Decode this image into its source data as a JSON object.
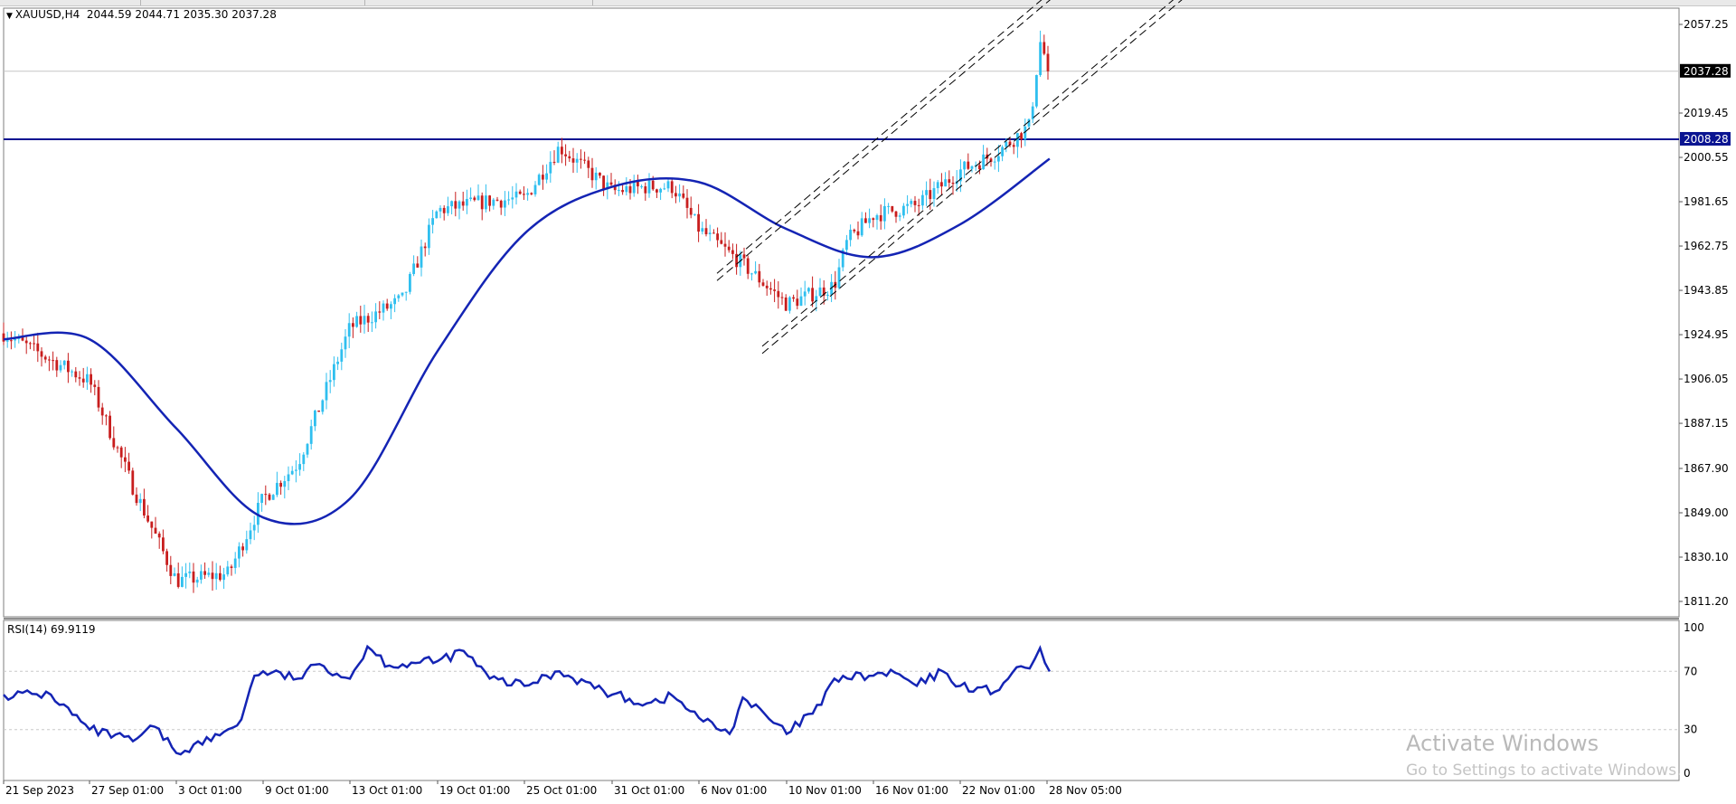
{
  "chart_header": {
    "symbol": "XAUUSD,H4",
    "ohlc": "2044.59 2044.71 2035.30 2037.28"
  },
  "price_axis_ticks": [
    "2057.25",
    "2019.45",
    "2000.55",
    "1981.65",
    "1962.75",
    "1943.85",
    "1924.95",
    "1906.05",
    "1887.15",
    "1867.90",
    "1849.00",
    "1830.10",
    "1811.20"
  ],
  "price_markers": {
    "current": "2037.28",
    "hline": "2008.28"
  },
  "time_axis_labels": [
    "21 Sep 2023",
    "27 Sep 01:00",
    "3 Oct 01:00",
    "9 Oct 01:00",
    "13 Oct 01:00",
    "19 Oct 01:00",
    "25 Oct 01:00",
    "31 Oct 01:00",
    "6 Nov 01:00",
    "10 Nov 01:00",
    "16 Nov 01:00",
    "22 Nov 01:00",
    "28 Nov 05:00"
  ],
  "rsi_header": "RSI(14) 69.9119",
  "rsi_axis_ticks": [
    "100",
    "70",
    "30",
    "0"
  ],
  "watermark": {
    "title": "Activate Windows",
    "subtitle": "Go to Settings to activate Windows."
  },
  "colors": {
    "bull": "#2fbfef",
    "bear": "#c81e1e",
    "ma": "#1424b4",
    "rsi": "#1424b4",
    "hline": "#0a1491",
    "channel": "#000000"
  },
  "chart_data": [
    {
      "type": "candlestick",
      "title": "XAUUSD,H4",
      "ylim": [
        1811.2,
        2057.25
      ],
      "overlays": [
        "moving-average",
        "horizontal-line 2008.28",
        "parallel channel (dashed)"
      ],
      "anchors": [
        {
          "x": "21 Sep 2023",
          "close": 1925.5
        },
        {
          "x": "27 Sep 01:00",
          "close": 1905
        },
        {
          "x": "29 Sep",
          "close": 1860
        },
        {
          "x": "3 Oct 01:00",
          "close": 1820
        },
        {
          "x": "6 Oct",
          "close": 1823
        },
        {
          "x": "9 Oct 01:00",
          "close": 1855
        },
        {
          "x": "11 Oct",
          "close": 1870
        },
        {
          "x": "13 Oct 01:00",
          "close": 1928
        },
        {
          "x": "17 Oct",
          "close": 1940
        },
        {
          "x": "19 Oct 01:00",
          "close": 1978
        },
        {
          "x": "23 Oct",
          "close": 1982
        },
        {
          "x": "25 Oct 01:00",
          "close": 1983
        },
        {
          "x": "27 Oct",
          "close": 2005
        },
        {
          "x": "31 Oct 01:00",
          "close": 1986
        },
        {
          "x": "2 Nov",
          "close": 1988
        },
        {
          "x": "4 Nov",
          "close": 1988
        },
        {
          "x": "6 Nov 01:00",
          "close": 1970
        },
        {
          "x": "8 Nov",
          "close": 1955
        },
        {
          "x": "10 Nov 01:00",
          "close": 1938
        },
        {
          "x": "13 Nov",
          "close": 1946
        },
        {
          "x": "14 Nov",
          "close": 1965
        },
        {
          "x": "16 Nov 01:00",
          "close": 1976
        },
        {
          "x": "19 Nov",
          "close": 1980
        },
        {
          "x": "22 Nov 01:00",
          "close": 1995
        },
        {
          "x": "24 Nov",
          "close": 2002
        },
        {
          "x": "27 Nov",
          "close": 2014
        },
        {
          "x": "28 Nov",
          "close": 2050
        },
        {
          "x": "28 Nov 05:00",
          "close": 2037.28
        }
      ],
      "moving_average": [
        {
          "x": "21 Sep 2023",
          "y": 1923
        },
        {
          "x": "27 Sep 01:00",
          "y": 1923
        },
        {
          "x": "3 Oct 01:00",
          "y": 1885
        },
        {
          "x": "9 Oct 01:00",
          "y": 1847
        },
        {
          "x": "13 Oct 01:00",
          "y": 1855
        },
        {
          "x": "19 Oct 01:00",
          "y": 1918
        },
        {
          "x": "25 Oct 01:00",
          "y": 1968
        },
        {
          "x": "31 Oct 01:00",
          "y": 1988
        },
        {
          "x": "6 Nov 01:00",
          "y": 1990
        },
        {
          "x": "10 Nov 01:00",
          "y": 1970
        },
        {
          "x": "16 Nov 01:00",
          "y": 1958
        },
        {
          "x": "22 Nov 01:00",
          "y": 1972
        },
        {
          "x": "28 Nov 05:00",
          "y": 2000
        }
      ]
    },
    {
      "type": "line",
      "title": "RSI(14) 69.9119",
      "ylim": [
        0,
        100
      ],
      "levels": [
        70,
        30
      ],
      "points": [
        {
          "x": "21 Sep 2023",
          "y": 54
        },
        {
          "x": "24 Sep",
          "y": 54
        },
        {
          "x": "27 Sep 01:00",
          "y": 30
        },
        {
          "x": "29 Sep",
          "y": 22
        },
        {
          "x": "1 Oct",
          "y": 32
        },
        {
          "x": "3 Oct 01:00",
          "y": 14
        },
        {
          "x": "5 Oct",
          "y": 26
        },
        {
          "x": "7 Oct",
          "y": 37
        },
        {
          "x": "8 Oct",
          "y": 67
        },
        {
          "x": "9 Oct 01:00",
          "y": 70
        },
        {
          "x": "11 Oct",
          "y": 65
        },
        {
          "x": "12 Oct",
          "y": 75
        },
        {
          "x": "13 Oct 01:00",
          "y": 65
        },
        {
          "x": "14 Oct",
          "y": 87
        },
        {
          "x": "16 Oct",
          "y": 74
        },
        {
          "x": "18 Oct",
          "y": 76
        },
        {
          "x": "19 Oct 01:00",
          "y": 77
        },
        {
          "x": "21 Oct",
          "y": 84
        },
        {
          "x": "23 Oct",
          "y": 65
        },
        {
          "x": "25 Oct 01:00",
          "y": 60
        },
        {
          "x": "27 Oct",
          "y": 70
        },
        {
          "x": "31 Oct 01:00",
          "y": 54
        },
        {
          "x": "2 Nov",
          "y": 48
        },
        {
          "x": "4 Nov",
          "y": 53
        },
        {
          "x": "6 Nov 01:00",
          "y": 38
        },
        {
          "x": "7 Nov",
          "y": 27
        },
        {
          "x": "8 Nov",
          "y": 52
        },
        {
          "x": "10 Nov 01:00",
          "y": 27
        },
        {
          "x": "12 Nov",
          "y": 47
        },
        {
          "x": "13 Nov",
          "y": 65
        },
        {
          "x": "16 Nov 01:00",
          "y": 67
        },
        {
          "x": "17 Nov",
          "y": 69
        },
        {
          "x": "19 Nov",
          "y": 60
        },
        {
          "x": "21 Nov",
          "y": 70
        },
        {
          "x": "22 Nov 01:00",
          "y": 60
        },
        {
          "x": "24 Nov",
          "y": 56
        },
        {
          "x": "25 Nov",
          "y": 69
        },
        {
          "x": "27 Nov",
          "y": 72
        },
        {
          "x": "28 Nov",
          "y": 86
        },
        {
          "x": "28 Nov 05:00",
          "y": 69.9119
        }
      ]
    }
  ]
}
